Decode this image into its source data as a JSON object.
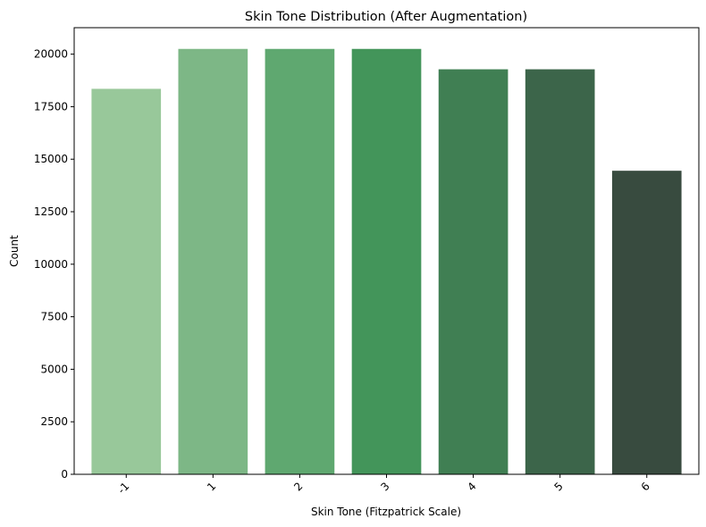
{
  "chart_data": {
    "type": "bar",
    "title": "Skin Tone Distribution (After Augmentation)",
    "xlabel": "Skin Tone (Fitzpatrick Scale)",
    "ylabel": "Count",
    "categories": [
      "-1",
      "1",
      "2",
      "3",
      "4",
      "5",
      "6"
    ],
    "values": [
      18350,
      20250,
      20250,
      20250,
      19280,
      19280,
      14450
    ],
    "colors": [
      "#98c89a",
      "#7db786",
      "#5fa870",
      "#43955a",
      "#407f53",
      "#3c654a",
      "#384b3f"
    ],
    "ylim": [
      0,
      21260
    ],
    "yticks": [
      0,
      2500,
      5000,
      7500,
      10000,
      12500,
      15000,
      17500,
      20000
    ],
    "grid": false,
    "xtick_rotation": -45
  }
}
